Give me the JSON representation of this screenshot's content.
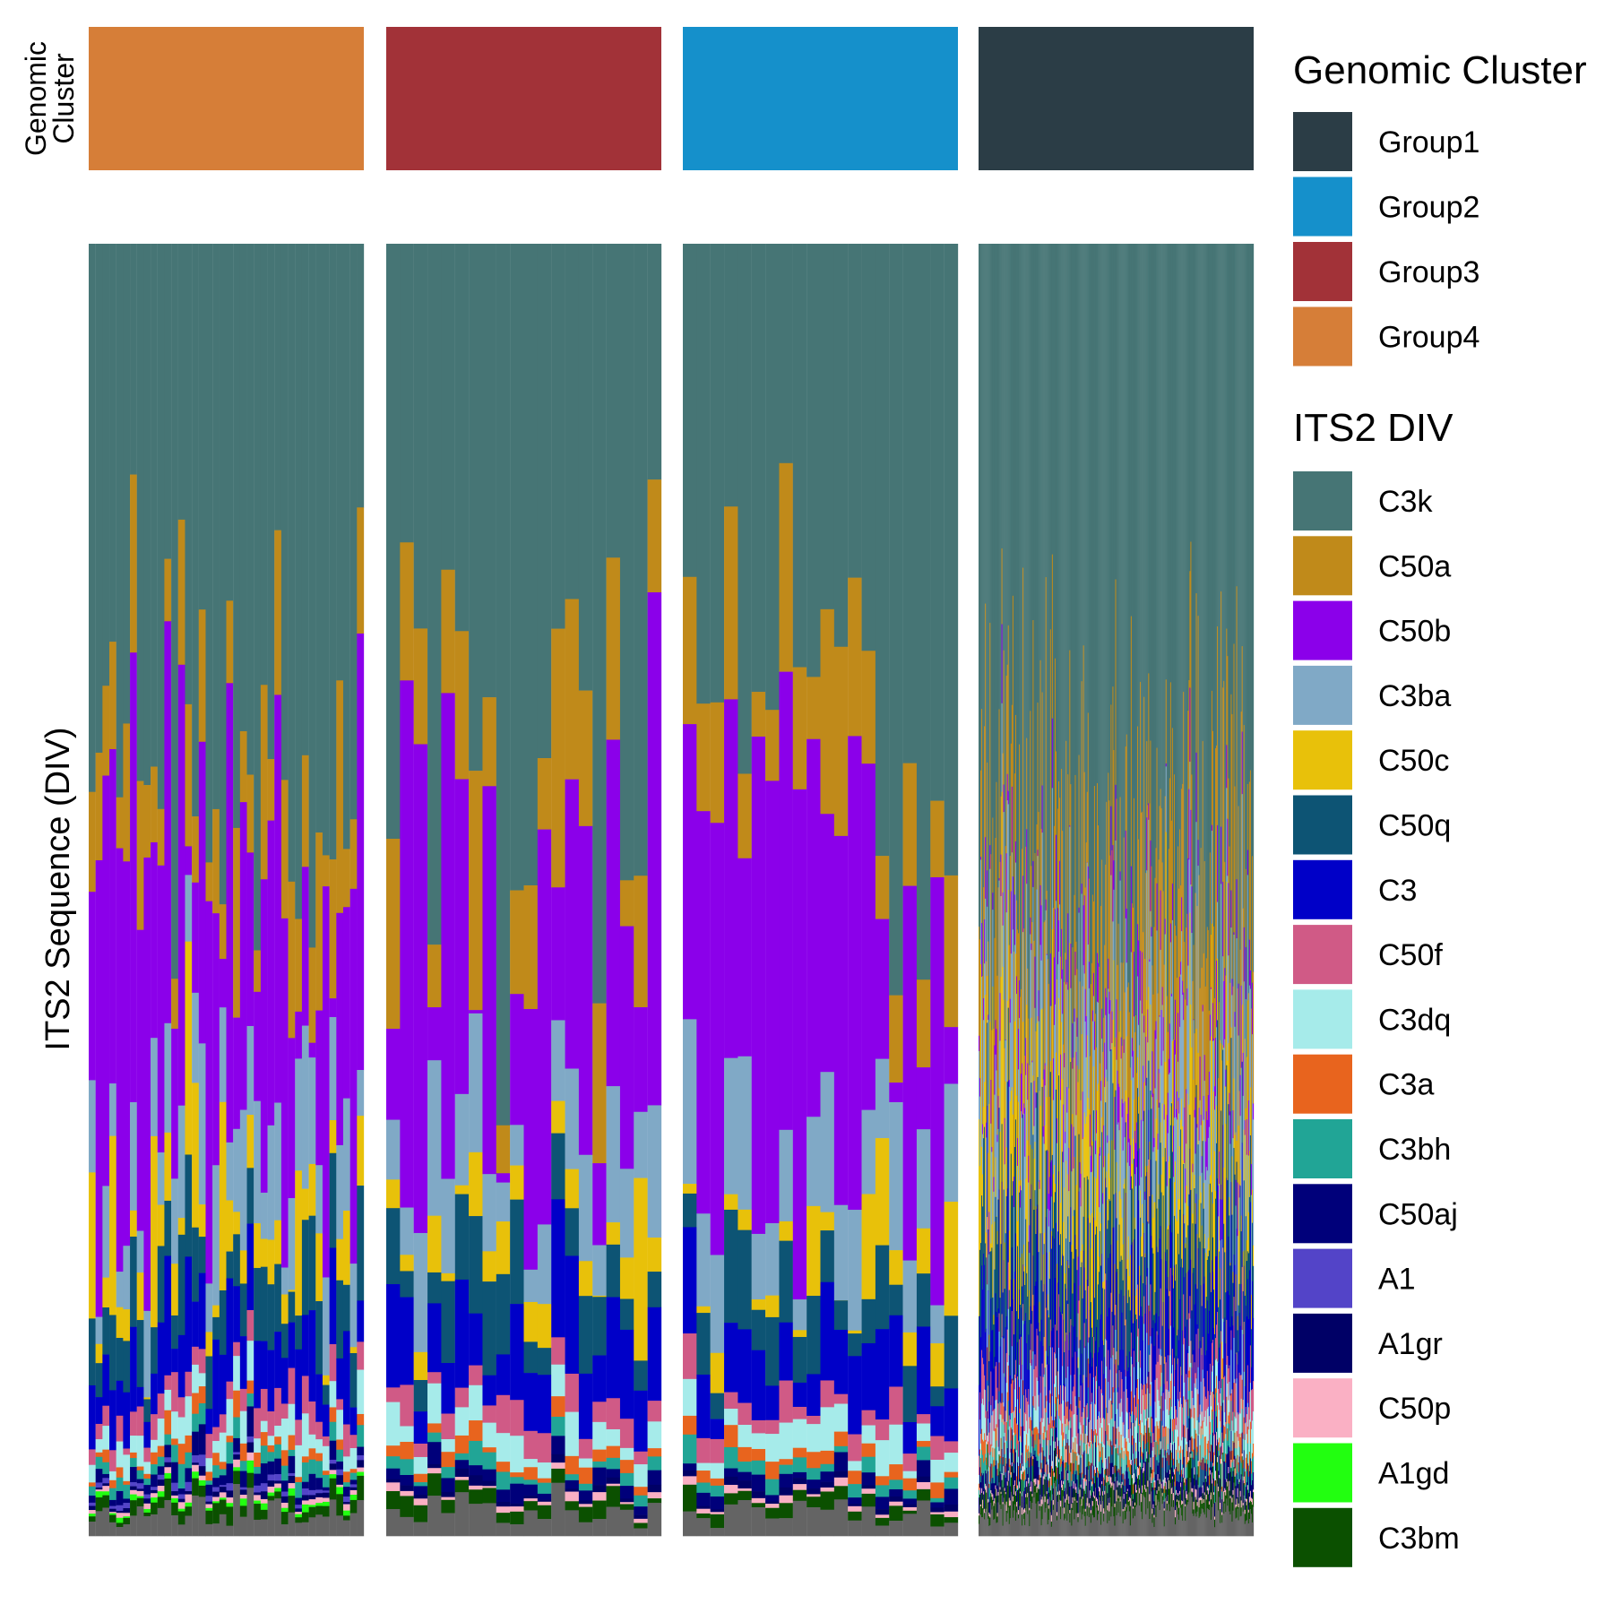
{
  "chart_data": {
    "type": "bar",
    "subtype": "stacked-proportional-bars-faceted",
    "y_axis_label": "ITS2 Sequence (DIV)",
    "annotation_row_label": [
      "Genomic",
      "Cluster"
    ],
    "facets": [
      {
        "cluster": "Group4",
        "n_samples": 40
      },
      {
        "cluster": "Group3",
        "n_samples": 20
      },
      {
        "cluster": "Group2",
        "n_samples": 20
      },
      {
        "cluster": "Group1",
        "n_samples": 300
      }
    ],
    "ylim": [
      0,
      1
    ],
    "legend_placement": "right",
    "legends": [
      {
        "title": "Genomic Cluster",
        "items": [
          {
            "label": "Group1",
            "color": "#2b3d46"
          },
          {
            "label": "Group2",
            "color": "#1590cb"
          },
          {
            "label": "Group3",
            "color": "#a23238"
          },
          {
            "label": "Group4",
            "color": "#d67e38"
          }
        ]
      },
      {
        "title": "ITS2 DIV",
        "items": [
          {
            "label": "C3k",
            "color": "#467575"
          },
          {
            "label": "C50a",
            "color": "#c08a1a"
          },
          {
            "label": "C50b",
            "color": "#8b00ea"
          },
          {
            "label": "C3ba",
            "color": "#80a9c6"
          },
          {
            "label": "C50c",
            "color": "#e8c10a"
          },
          {
            "label": "C50q",
            "color": "#0d5474"
          },
          {
            "label": "C3",
            "color": "#0000c8"
          },
          {
            "label": "C50f",
            "color": "#d05a86"
          },
          {
            "label": "C3dq",
            "color": "#a6ebea"
          },
          {
            "label": "C3a",
            "color": "#e8641e"
          },
          {
            "label": "C3bh",
            "color": "#21a596"
          },
          {
            "label": "C50aj",
            "color": "#00007a"
          },
          {
            "label": "A1",
            "color": "#5344c8"
          },
          {
            "label": "A1gr",
            "color": "#000066"
          },
          {
            "label": "C50p",
            "color": "#fab0c4"
          },
          {
            "label": "A1gd",
            "color": "#22ff10"
          },
          {
            "label": "C3bm",
            "color": "#0b5000"
          }
        ]
      }
    ],
    "other_color": "#646464",
    "typical_profile_approx": {
      "C3k": 0.45,
      "C50a": 0.1,
      "C50b": 0.15,
      "C3ba": 0.07,
      "C50c": 0.04,
      "C50q": 0.05,
      "C3": 0.05,
      "C50f": 0.02,
      "C3dq": 0.02,
      "C3a": 0.01,
      "C3bh": 0.01,
      "C50aj": 0.01,
      "C3bm": 0.01,
      "other": 0.02
    }
  }
}
